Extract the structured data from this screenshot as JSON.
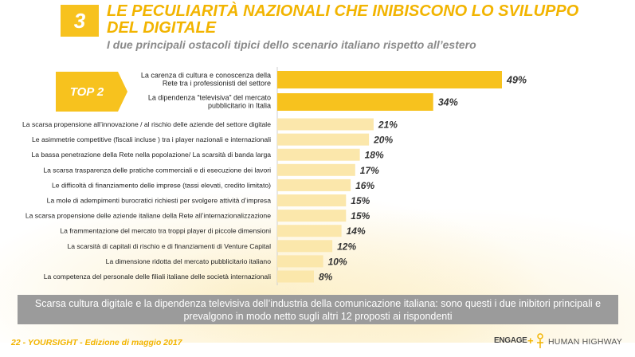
{
  "header": {
    "section_number": "3",
    "title": "LE PECULIARITÀ NAZIONALI CHE INIBISCONO LO SVILUPPO DEL DIGITALE",
    "subtitle": "I due principali ostacoli tipici dello scenario italiano rispetto all’estero"
  },
  "badge": {
    "label": "TOP 2"
  },
  "colors": {
    "accent": "#f7c21e",
    "highlight_bar": "#f7c21e",
    "bar": "#fbe7ab",
    "footer_bg": "#9b9b9b"
  },
  "chart_data": {
    "type": "bar",
    "orientation": "horizontal",
    "categories": [
      "La carenza di cultura e conoscenza della Rete tra i professionisti del settore",
      "La dipendenza “televisiva” del mercato pubblicitario in Italia",
      "La scarsa propensione all’innovazione / al rischio delle aziende del settore digitale",
      "Le asimmetrie competitive (fiscali incluse ) tra i player nazionali e internazionali",
      "La bassa penetrazione della Rete nella popolazione/ La scarsità  di banda larga",
      "La scarsa trasparenza delle pratiche commerciali e di esecuzione dei lavori",
      "Le  difficoltà  di finanziamento delle imprese (tassi elevati, credito limitato)",
      "La mole di adempimenti burocratici richiesti per svolgere attività  d’impresa",
      "La scarsa propensione delle aziende italiane della Rete all’internazionalizzazione",
      "La frammentazione del mercato tra troppi player di piccole dimensioni",
      "La scarsità  di capitali di rischio e di finanziamenti di Venture Capital",
      "La dimensione ridotta del mercato pubblicitario italiano",
      "La competenza del personale delle filiali italiane delle società  internazionali"
    ],
    "top_labels": [
      [
        "La carenza di cultura e conoscenza della",
        "Rete tra i professionisti del settore"
      ],
      [
        "La dipendenza “televisiva” del mercato",
        "pubblicitario in Italia"
      ]
    ],
    "values": [
      49,
      34,
      21,
      20,
      18,
      17,
      16,
      15,
      15,
      14,
      12,
      10,
      8
    ],
    "value_labels": [
      "49%",
      "34%",
      "21%",
      "20%",
      "18%",
      "17%",
      "16%",
      "15%",
      "15%",
      "14%",
      "12%",
      "10%",
      "8%"
    ],
    "highlighted_count": 2,
    "xlim": [
      0,
      49
    ]
  },
  "footer": {
    "summary": "Scarsa cultura digitale e la dipendenza televisiva dell’industria della comunicazione italiana: sono questi i due inibitori principali e prevalgono in modo netto sugli altri 12 proposti ai rispondenti",
    "page_info": "22 - YOURSIGHT - Edizione di maggio 2017",
    "logo_left": "ENGAGE",
    "logo_plus": "+",
    "logo_right": "HUMAN HIGHWAY"
  }
}
